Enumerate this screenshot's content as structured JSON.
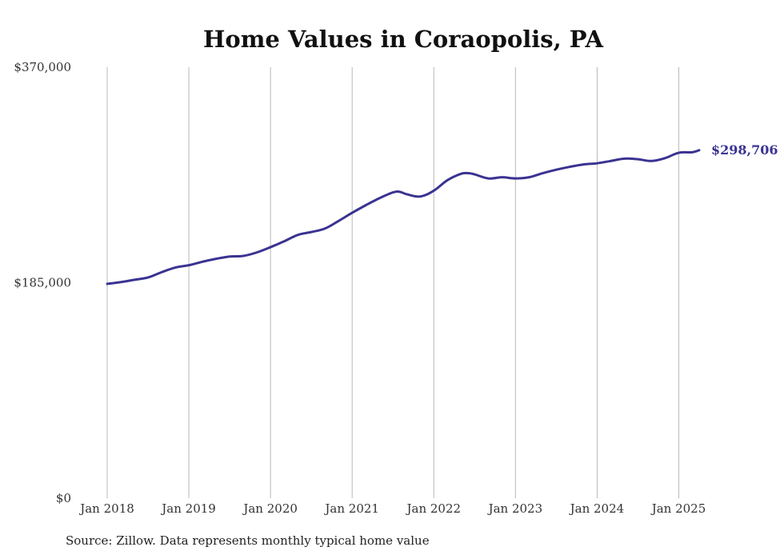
{
  "chart_data": {
    "type": "line",
    "title": "Home Values in Coraopolis, PA",
    "source": "Source: Zillow. Data represents monthly typical home value",
    "ylim": [
      0,
      370000
    ],
    "yticks": [
      {
        "value": 0,
        "label": "$0"
      },
      {
        "value": 185000,
        "label": "$185,000"
      },
      {
        "value": 370000,
        "label": "$370,000"
      }
    ],
    "xlim": [
      "2018-01",
      "2025-04"
    ],
    "xticks": [
      {
        "date": "2018-01",
        "label": "Jan 2018"
      },
      {
        "date": "2019-01",
        "label": "Jan 2019"
      },
      {
        "date": "2020-01",
        "label": "Jan 2020"
      },
      {
        "date": "2021-01",
        "label": "Jan 2021"
      },
      {
        "date": "2022-01",
        "label": "Jan 2022"
      },
      {
        "date": "2023-01",
        "label": "Jan 2023"
      },
      {
        "date": "2024-01",
        "label": "Jan 2024"
      },
      {
        "date": "2025-01",
        "label": "Jan 2025"
      }
    ],
    "grid": {
      "vertical": true,
      "horizontal": false
    },
    "end_label": "$298,706",
    "series": [
      {
        "color": "#3a3391",
        "x": [
          "2018-01",
          "2018-03",
          "2018-05",
          "2018-07",
          "2018-09",
          "2018-11",
          "2019-01",
          "2019-03",
          "2019-05",
          "2019-07",
          "2019-09",
          "2019-11",
          "2020-01",
          "2020-03",
          "2020-05",
          "2020-07",
          "2020-09",
          "2020-11",
          "2021-01",
          "2021-03",
          "2021-05",
          "2021-07",
          "2021-08",
          "2021-09",
          "2021-11",
          "2022-01",
          "2022-03",
          "2022-05",
          "2022-06",
          "2022-07",
          "2022-09",
          "2022-11",
          "2023-01",
          "2023-03",
          "2023-05",
          "2023-07",
          "2023-09",
          "2023-11",
          "2024-01",
          "2024-03",
          "2024-05",
          "2024-07",
          "2024-09",
          "2024-11",
          "2025-01",
          "2025-03",
          "2025-04"
        ],
        "y": [
          184000,
          185500,
          187500,
          189500,
          194000,
          198000,
          200000,
          203000,
          205500,
          207500,
          208000,
          211000,
          215500,
          220500,
          226000,
          228500,
          231500,
          238000,
          245000,
          251500,
          257500,
          262500,
          263000,
          261000,
          259000,
          264000,
          273000,
          278500,
          279000,
          278000,
          274500,
          275500,
          274500,
          275500,
          279000,
          282000,
          284500,
          286500,
          287500,
          289500,
          291500,
          291000,
          289500,
          292000,
          296500,
          297000,
          298706
        ]
      }
    ]
  }
}
